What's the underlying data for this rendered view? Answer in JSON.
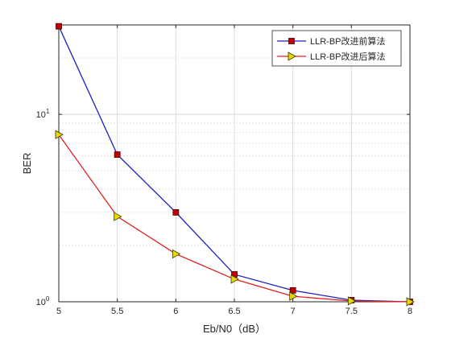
{
  "chart_data": {
    "type": "line",
    "title": "",
    "xlabel": "Eb/N0（dB）",
    "ylabel": "BER",
    "xlim": [
      5,
      8
    ],
    "ylim": [
      1,
      30
    ],
    "yscale": "log",
    "grid": true,
    "legend_position": "top-right",
    "x_ticks": [
      "5",
      "5.5",
      "6",
      "6.5",
      "7",
      "7.5",
      "8"
    ],
    "y_ticks": [
      {
        "base": "10",
        "exp": "0",
        "value": 1
      },
      {
        "base": "10",
        "exp": "1",
        "value": 10
      }
    ],
    "x": [
      5,
      5.5,
      6,
      6.5,
      7,
      7.5,
      8
    ],
    "series": [
      {
        "name": "LLR-BP改进前算法",
        "color": "#1f1fbf",
        "marker": "square",
        "marker_color": "#c00000",
        "values": [
          29.5,
          6.1,
          3.0,
          1.4,
          1.15,
          1.02,
          1.0
        ]
      },
      {
        "name": "LLR-BP改进后算法",
        "color": "#e02020",
        "marker": "triangle-right",
        "marker_color": "#e6d800",
        "values": [
          7.8,
          2.85,
          1.8,
          1.32,
          1.07,
          1.01,
          1.0
        ]
      }
    ]
  }
}
